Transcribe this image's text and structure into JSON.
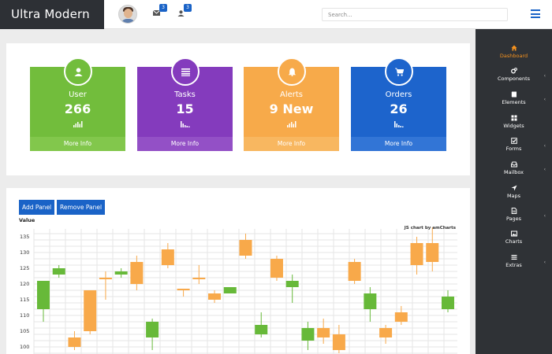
{
  "header": {
    "brand": "Ultra Modern",
    "search_placeholder": "Search...",
    "mail_badge": "3",
    "users_badge": "3"
  },
  "sidebar": {
    "items": [
      {
        "label": "Dashboard",
        "icon": "home-icon",
        "active": true,
        "caret": false
      },
      {
        "label": "Components",
        "icon": "cogs-icon",
        "active": false,
        "caret": true
      },
      {
        "label": "Elements",
        "icon": "book-icon",
        "active": false,
        "caret": true
      },
      {
        "label": "Widgets",
        "icon": "grid-icon",
        "active": false,
        "caret": false
      },
      {
        "label": "Forms",
        "icon": "checkbox-icon",
        "active": false,
        "caret": true
      },
      {
        "label": "Mailbox",
        "icon": "inbox-icon",
        "active": false,
        "caret": true
      },
      {
        "label": "Maps",
        "icon": "location-arrow-icon",
        "active": false,
        "caret": false
      },
      {
        "label": "Pages",
        "icon": "file-icon",
        "active": false,
        "caret": true
      },
      {
        "label": "Charts",
        "icon": "picture-icon",
        "active": false,
        "caret": false
      },
      {
        "label": "Extras",
        "icon": "list-icon",
        "active": false,
        "caret": true
      }
    ],
    "caret_glyph": "‹"
  },
  "cards": [
    {
      "title": "User",
      "value": "266",
      "footer": "More Info",
      "color": "#72bd3c",
      "footer_color": "#82c74c",
      "icon": "user-icon"
    },
    {
      "title": "Tasks",
      "value": "15",
      "footer": "More Info",
      "color": "#843bbd",
      "footer_color": "#9350c6",
      "icon": "list-icon"
    },
    {
      "title": "Alerts",
      "value": "9 New",
      "footer": "More Info",
      "color": "#f7aa4a",
      "footer_color": "#f8b760",
      "icon": "bell-icon"
    },
    {
      "title": "Orders",
      "value": "26",
      "footer": "More Info",
      "color": "#1d64cc",
      "footer_color": "#3275d6",
      "icon": "cart-icon"
    }
  ],
  "chart_panel": {
    "add_button": "Add Panel",
    "remove_button": "Remove Panel",
    "axis_label": "Value",
    "credit": "JS chart by amCharts"
  },
  "chart_data": {
    "type": "candlestick",
    "ylabel": "Value",
    "y_ticks": [
      100,
      105,
      110,
      115,
      120,
      125,
      130,
      135
    ],
    "ylim": [
      98,
      137
    ],
    "grid": true,
    "up_color": "#67b939",
    "down_color": "#f8a94a",
    "candles": [
      {
        "open": 112,
        "close": 121,
        "high": 121,
        "low": 108,
        "trend": "up"
      },
      {
        "open": 123,
        "close": 125,
        "high": 126,
        "low": 122,
        "trend": "up"
      },
      {
        "open": 103,
        "close": 100,
        "high": 105,
        "low": 99,
        "trend": "down"
      },
      {
        "open": 118,
        "close": 105,
        "high": 118,
        "low": 104,
        "trend": "down"
      },
      {
        "open": 122,
        "close": 121.5,
        "high": 124,
        "low": 115,
        "trend": "down"
      },
      {
        "open": 123,
        "close": 124,
        "high": 125,
        "low": 122,
        "trend": "up"
      },
      {
        "open": 127,
        "close": 120,
        "high": 129,
        "low": 118,
        "trend": "down"
      },
      {
        "open": 103,
        "close": 108,
        "high": 109,
        "low": 99,
        "trend": "up"
      },
      {
        "open": 131,
        "close": 126,
        "high": 133,
        "low": 125,
        "trend": "down"
      },
      {
        "open": 118.5,
        "close": 118,
        "high": 118.5,
        "low": 116,
        "trend": "down"
      },
      {
        "open": 122,
        "close": 121.5,
        "high": 126,
        "low": 120,
        "trend": "down"
      },
      {
        "open": 117,
        "close": 115,
        "high": 118,
        "low": 114,
        "trend": "down"
      },
      {
        "open": 117,
        "close": 119,
        "high": 119,
        "low": 117,
        "trend": "up"
      },
      {
        "open": 134,
        "close": 129,
        "high": 136,
        "low": 128,
        "trend": "down"
      },
      {
        "open": 104,
        "close": 107,
        "high": 111,
        "low": 103,
        "trend": "up"
      },
      {
        "open": 128,
        "close": 122,
        "high": 129,
        "low": 121,
        "trend": "down"
      },
      {
        "open": 119,
        "close": 121,
        "high": 123,
        "low": 114,
        "trend": "up"
      },
      {
        "open": 102,
        "close": 106,
        "high": 108,
        "low": 99,
        "trend": "up"
      },
      {
        "open": 106,
        "close": 103,
        "high": 109,
        "low": 101,
        "trend": "down"
      },
      {
        "open": 104,
        "close": 99,
        "high": 107,
        "low": 98,
        "trend": "down"
      },
      {
        "open": 127,
        "close": 121,
        "high": 128,
        "low": 120,
        "trend": "down"
      },
      {
        "open": 112,
        "close": 117,
        "high": 119,
        "low": 108,
        "trend": "up"
      },
      {
        "open": 106,
        "close": 103,
        "high": 107,
        "low": 101,
        "trend": "down"
      },
      {
        "open": 111,
        "close": 108,
        "high": 113,
        "low": 107,
        "trend": "down"
      },
      {
        "open": 133,
        "close": 126,
        "high": 135,
        "low": 123,
        "trend": "down"
      },
      {
        "open": 133,
        "close": 127,
        "high": 138,
        "low": 124,
        "trend": "down"
      },
      {
        "open": 112,
        "close": 116,
        "high": 118,
        "low": 111,
        "trend": "up"
      }
    ]
  }
}
